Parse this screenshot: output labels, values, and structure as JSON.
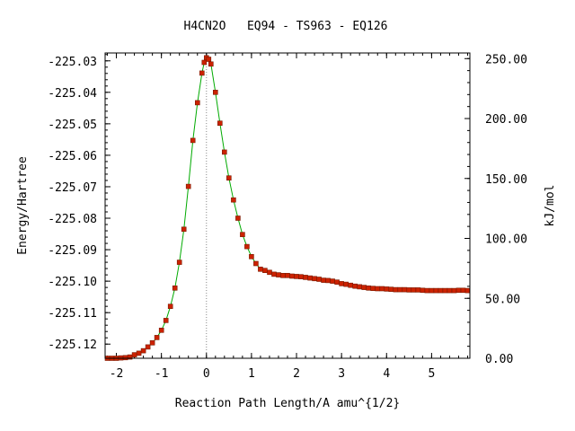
{
  "chart_data": {
    "type": "line",
    "title": "H4CN2O   EQ94 - TS963 - EQ126",
    "xlabel": "Reaction Path Length/A amu^{1/2}",
    "ylabel": "Energy/Hartree",
    "y2label": "kJ/mol",
    "xlim": [
      -2.25,
      5.85
    ],
    "ylim": [
      -225.1245,
      -225.0275
    ],
    "y2lim": [
      0,
      254.7
    ],
    "x_ticks": [
      -2,
      -1,
      0,
      1,
      2,
      3,
      4,
      5
    ],
    "x_tick_labels": [
      "-2",
      "-1",
      "0",
      "1",
      "2",
      "3",
      "4",
      "5"
    ],
    "y_ticks": [
      -225.12,
      -225.11,
      -225.1,
      -225.09,
      -225.08,
      -225.07,
      -225.06,
      -225.05,
      -225.04,
      -225.03
    ],
    "y_tick_labels": [
      "-225.12",
      "-225.11",
      "-225.10",
      "-225.09",
      "-225.08",
      "-225.07",
      "-225.06",
      "-225.05",
      "-225.04",
      "-225.03"
    ],
    "y2_ticks": [
      0,
      50,
      100,
      150,
      200,
      250
    ],
    "y2_tick_labels": [
      "0.00",
      "50.00",
      "100.00",
      "150.00",
      "200.00",
      "250.00"
    ],
    "ts_marker_x": 0.0,
    "grid": false,
    "colors": {
      "line": "#00aa00",
      "marker": "#cc2200",
      "marker_edge": "#7a1a00",
      "ts_line": "#888888"
    },
    "series": [
      {
        "x": [
          -2.2,
          -2.1,
          -2.0,
          -1.9,
          -1.8,
          -1.7,
          -1.6,
          -1.5,
          -1.4,
          -1.3,
          -1.2,
          -1.1,
          -1.0,
          -0.9,
          -0.8,
          -0.7,
          -0.6,
          -0.5,
          -0.4,
          -0.3,
          -0.2,
          -0.1,
          -0.05,
          0.0,
          0.05,
          0.1,
          0.2,
          0.3,
          0.4,
          0.5,
          0.6,
          0.7,
          0.8,
          0.9,
          1.0,
          1.1,
          1.2,
          1.3,
          1.4,
          1.5,
          1.6,
          1.7,
          1.8,
          1.9,
          2.0,
          2.1,
          2.2,
          2.3,
          2.4,
          2.5,
          2.6,
          2.7,
          2.8,
          2.9,
          3.0,
          3.1,
          3.2,
          3.3,
          3.4,
          3.5,
          3.6,
          3.7,
          3.8,
          3.9,
          4.0,
          4.1,
          4.2,
          4.3,
          4.4,
          4.5,
          4.6,
          4.7,
          4.8,
          4.9,
          5.0,
          5.1,
          5.2,
          5.3,
          5.4,
          5.5,
          5.6,
          5.7,
          5.8
        ],
        "y": [
          -225.1245,
          -225.1245,
          -225.1245,
          -225.1244,
          -225.1243,
          -225.1241,
          -225.1234,
          -225.1229,
          -225.1221,
          -225.1209,
          -225.1196,
          -225.1179,
          -225.1156,
          -225.1125,
          -225.108,
          -225.1022,
          -225.094,
          -225.0835,
          -225.0699,
          -225.0553,
          -225.0433,
          -225.0339,
          -225.0305,
          -225.029,
          -225.0295,
          -225.031,
          -225.04,
          -225.0498,
          -225.059,
          -225.0672,
          -225.0742,
          -225.08,
          -225.0852,
          -225.089,
          -225.0922,
          -225.0944,
          -225.0962,
          -225.0966,
          -225.0972,
          -225.0978,
          -225.098,
          -225.0982,
          -225.0982,
          -225.0984,
          -225.0985,
          -225.0986,
          -225.0988,
          -225.099,
          -225.0992,
          -225.0994,
          -225.0997,
          -225.0998,
          -225.1,
          -225.1003,
          -225.1008,
          -225.101,
          -225.1013,
          -225.1016,
          -225.1018,
          -225.102,
          -225.1022,
          -225.1023,
          -225.1024,
          -225.1024,
          -225.1025,
          -225.1026,
          -225.1027,
          -225.1027,
          -225.1027,
          -225.1028,
          -225.1028,
          -225.1028,
          -225.1029,
          -225.103,
          -225.103,
          -225.103,
          -225.103,
          -225.103,
          -225.103,
          -225.103,
          -225.1029,
          -225.1029,
          -225.103
        ]
      }
    ]
  }
}
